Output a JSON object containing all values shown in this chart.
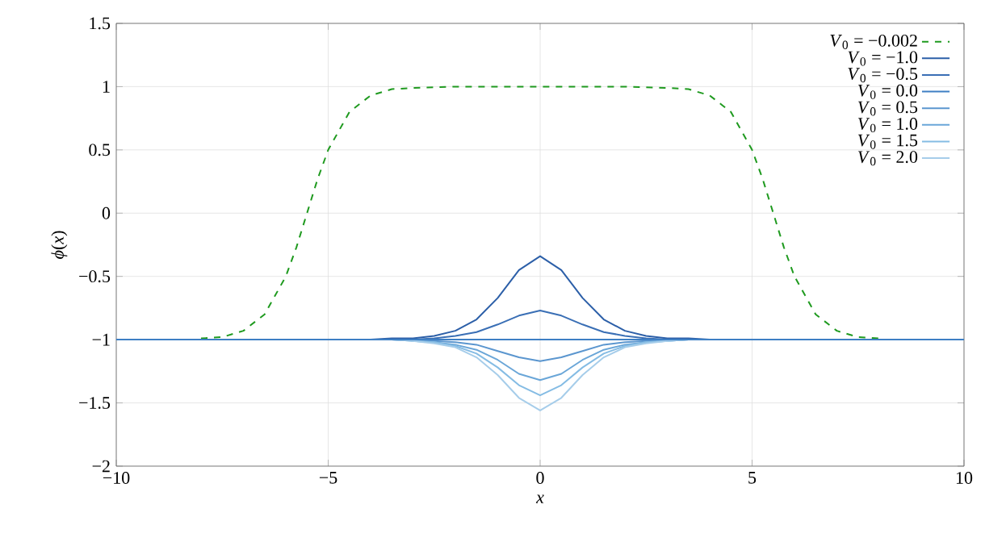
{
  "chart_data": {
    "type": "line",
    "xlabel": "*x*",
    "ylabel": "*ϕ*(*x*)",
    "xlim": [
      -10,
      10
    ],
    "ylim": [
      -2,
      1.5
    ],
    "xticks": [
      {
        "value": -10,
        "label": "−10"
      },
      {
        "value": -5,
        "label": "−5"
      },
      0,
      5,
      10
    ],
    "yticks": [
      {
        "value": -2,
        "label": "−2"
      },
      {
        "value": -1.5,
        "label": "−1.5"
      },
      {
        "value": -1,
        "label": "−1"
      },
      {
        "value": -0.5,
        "label": "−0.5"
      },
      0,
      0.5,
      1,
      1.5
    ],
    "grid": true,
    "legend": "top right",
    "x": [
      -10,
      -6,
      -5,
      -4,
      -3.5,
      -3,
      -2.5,
      -2,
      -1.5,
      -1,
      -0.5,
      0,
      0.5,
      1,
      1.5,
      2,
      2.5,
      3,
      3.5,
      4,
      5,
      6,
      10
    ],
    "series": [
      {
        "name": "*V*$_{0}$ = −0.002",
        "color": "#1f9a1f",
        "line_style": "dashed",
        "x": [
          -8,
          -7.5,
          -7,
          -6.5,
          -6,
          -5.75,
          -5.5,
          -5.25,
          -5,
          -4.5,
          -4,
          -3.5,
          -3,
          -2,
          0,
          2,
          3,
          3.5,
          4,
          4.5,
          5,
          5.25,
          5.5,
          5.75,
          6,
          6.5,
          7,
          7.5,
          8
        ],
        "values": [
          -0.99,
          -0.98,
          -0.93,
          -0.8,
          -0.5,
          -0.27,
          0,
          0.27,
          0.5,
          0.8,
          0.93,
          0.98,
          0.99,
          1,
          1,
          1,
          0.99,
          0.98,
          0.93,
          0.8,
          0.5,
          0.27,
          0,
          -0.27,
          -0.5,
          -0.8,
          -0.93,
          -0.98,
          -0.99
        ]
      },
      {
        "name": "*V*$_{0}$ = −1.0",
        "color": "#2c5fa8",
        "values": [
          null,
          null,
          null,
          -1,
          -0.99,
          -0.99,
          -0.97,
          -0.93,
          -0.84,
          -0.67,
          -0.45,
          -0.34,
          -0.45,
          -0.67,
          -0.84,
          -0.93,
          -0.97,
          -0.99,
          -0.99,
          -1,
          null,
          null,
          null
        ]
      },
      {
        "name": "*V*$_{0}$ = −0.5",
        "color": "#3a6fb5",
        "values": [
          null,
          null,
          null,
          -1,
          -1,
          -1,
          -0.99,
          -0.97,
          -0.94,
          -0.88,
          -0.81,
          -0.77,
          -0.81,
          -0.88,
          -0.94,
          -0.97,
          -0.99,
          -1,
          -1,
          -1,
          null,
          null,
          null
        ]
      },
      {
        "name": "*V*$_{0}$ = 0.0",
        "color": "#3e7fc4",
        "values": [
          -1,
          -1,
          -1,
          -1,
          -1,
          -1,
          -1,
          -1,
          -1,
          -1,
          -1,
          -1,
          -1,
          -1,
          -1,
          -1,
          -1,
          -1,
          -1,
          -1,
          -1,
          -1,
          -1
        ]
      },
      {
        "name": "*V*$_{0}$ = 0.5",
        "color": "#5b96cf",
        "values": [
          null,
          null,
          null,
          -1,
          -1,
          -1,
          -1.01,
          -1.02,
          -1.04,
          -1.09,
          -1.14,
          -1.17,
          -1.14,
          -1.09,
          -1.04,
          -1.02,
          -1.01,
          -1,
          -1,
          -1,
          null,
          null,
          null
        ]
      },
      {
        "name": "*V*$_{0}$ = 1.0",
        "color": "#6aa6d8",
        "values": [
          null,
          null,
          null,
          -1,
          -1,
          -1.01,
          -1.02,
          -1.04,
          -1.08,
          -1.16,
          -1.27,
          -1.32,
          -1.27,
          -1.16,
          -1.08,
          -1.04,
          -1.02,
          -1.01,
          -1,
          -1,
          null,
          null,
          null
        ]
      },
      {
        "name": "*V*$_{0}$ = 1.5",
        "color": "#85bce4",
        "values": [
          null,
          null,
          null,
          -1,
          -1,
          -1.01,
          -1.02,
          -1.05,
          -1.11,
          -1.22,
          -1.36,
          -1.44,
          -1.36,
          -1.22,
          -1.11,
          -1.05,
          -1.02,
          -1.01,
          -1,
          -1,
          null,
          null,
          null
        ]
      },
      {
        "name": "*V*$_{0}$ = 2.0",
        "color": "#a6cdea",
        "values": [
          null,
          null,
          null,
          -1,
          -1,
          -1.01,
          -1.03,
          -1.06,
          -1.14,
          -1.28,
          -1.46,
          -1.56,
          -1.46,
          -1.28,
          -1.14,
          -1.06,
          -1.03,
          -1.01,
          -1,
          -1,
          null,
          null,
          null
        ]
      }
    ]
  }
}
